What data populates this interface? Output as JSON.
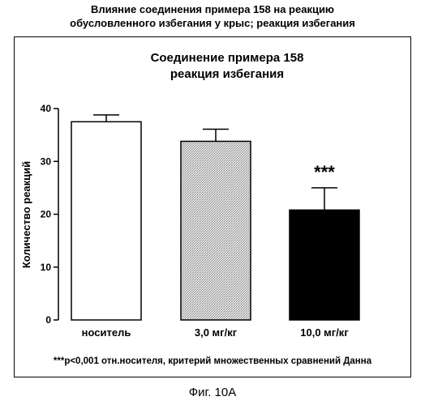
{
  "doc": {
    "title_line1": "Влияние соединения примера 158 на реакцию",
    "title_line2": "обусловленного избегания у крыс; реакция избегания",
    "figure_caption": "Фиг. 10А"
  },
  "chart_data": {
    "type": "bar",
    "title_line1": "Соединение примера 158",
    "title_line2": "реакция избегания",
    "xlabel": "",
    "ylabel": "Количество реакций",
    "categories": [
      "носитель",
      "3,0 мг/кг",
      "10,0 мг/кг"
    ],
    "values": [
      37.5,
      33.8,
      20.8
    ],
    "errors": [
      1.3,
      2.3,
      4.2
    ],
    "bar_fills": [
      "white",
      "stipple",
      "black"
    ],
    "significance": [
      "",
      "",
      "***"
    ],
    "ylim": [
      0,
      40
    ],
    "yticks": [
      0,
      10,
      20,
      30,
      40
    ],
    "grid": false,
    "footnote": "***p<0,001 отн.носителя, критерий множественных сравнений Данна"
  }
}
